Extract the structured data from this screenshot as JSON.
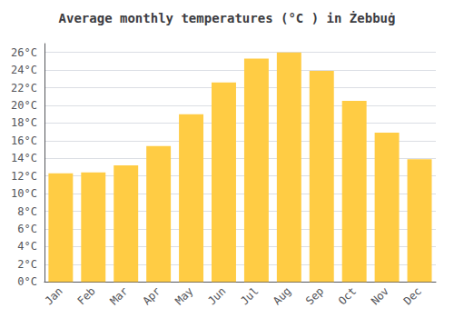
{
  "chart_data": {
    "type": "bar",
    "title": "Average monthly temperatures (°C ) in Żebbuġ",
    "categories": [
      "Jan",
      "Feb",
      "Mar",
      "Apr",
      "May",
      "Jun",
      "Jul",
      "Aug",
      "Sep",
      "Oct",
      "Nov",
      "Dec"
    ],
    "values": [
      12.3,
      12.4,
      13.2,
      15.4,
      19.0,
      22.6,
      25.3,
      26.0,
      23.9,
      20.5,
      16.9,
      13.9
    ],
    "color": "#FFCC44",
    "ylim": [
      0,
      27
    ],
    "yticks": [
      {
        "value": 0,
        "label": "0°C"
      },
      {
        "value": 2,
        "label": "2°C"
      },
      {
        "value": 4,
        "label": "4°C"
      },
      {
        "value": 6,
        "label": "6°C"
      },
      {
        "value": 8,
        "label": "8°C"
      },
      {
        "value": 10,
        "label": "10°C"
      },
      {
        "value": 12,
        "label": "12°C"
      },
      {
        "value": 14,
        "label": "14°C"
      },
      {
        "value": 16,
        "label": "16°C"
      },
      {
        "value": 18,
        "label": "18°C"
      },
      {
        "value": 20,
        "label": "20°C"
      },
      {
        "value": 22,
        "label": "22°C"
      },
      {
        "value": 24,
        "label": "24°C"
      },
      {
        "value": 26,
        "label": "26°C"
      }
    ],
    "grid": true
  }
}
